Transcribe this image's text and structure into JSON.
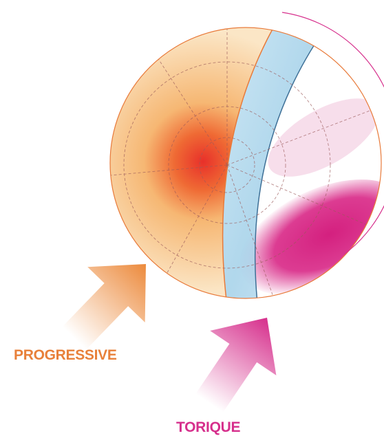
{
  "labels": {
    "progressive": "PROGRESSIVE",
    "torique": "TORIQUE"
  }
}
